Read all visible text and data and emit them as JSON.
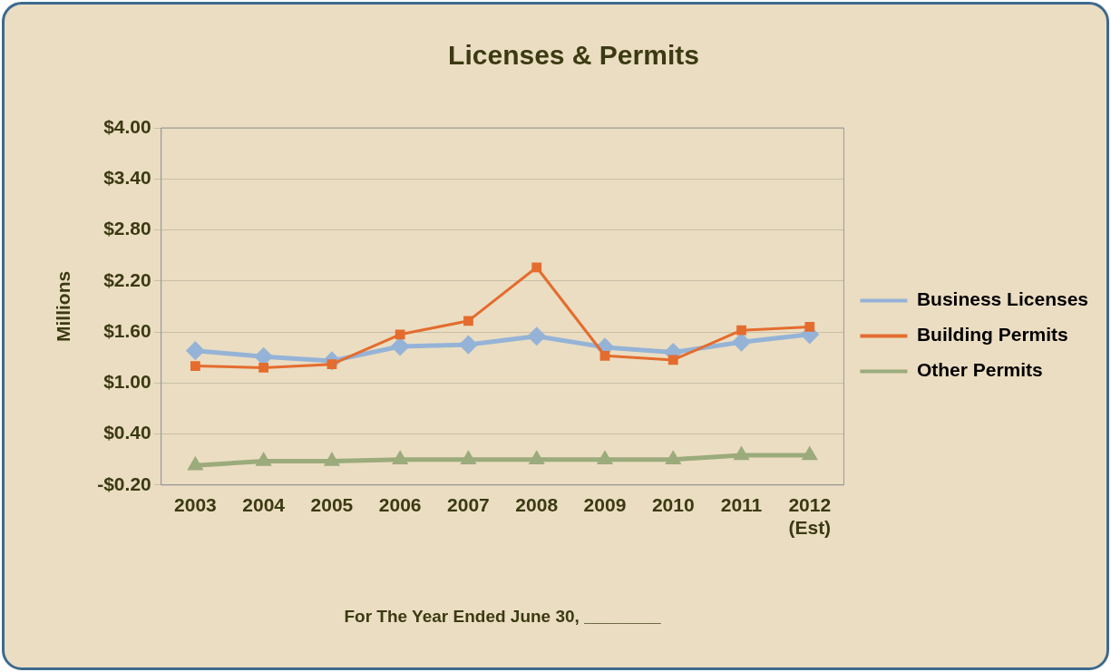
{
  "chart_data": {
    "type": "line",
    "title": "Licenses & Permits",
    "xlabel": "For The Year Ended June 30, ________",
    "ylabel": "Millions",
    "categories": [
      "2003",
      "2004",
      "2005",
      "2006",
      "2007",
      "2008",
      "2009",
      "2010",
      "2011",
      "2012 (Est)"
    ],
    "series": [
      {
        "name": "Business Licenses",
        "color": "#95b3d7",
        "marker": "diamond",
        "values": [
          1.38,
          1.31,
          1.26,
          1.43,
          1.45,
          1.55,
          1.42,
          1.36,
          1.48,
          1.57
        ]
      },
      {
        "name": "Building Permits",
        "color": "#e46c2e",
        "marker": "square",
        "values": [
          1.2,
          1.18,
          1.22,
          1.57,
          1.73,
          2.36,
          1.32,
          1.27,
          1.62,
          1.66
        ]
      },
      {
        "name": "Other Permits",
        "color": "#9bab7c",
        "marker": "triangle",
        "values": [
          0.03,
          0.08,
          0.08,
          0.1,
          0.1,
          0.1,
          0.1,
          0.1,
          0.15,
          0.15
        ]
      }
    ],
    "ylim": [
      -0.2,
      4.0
    ],
    "yticks": [
      {
        "value": -0.2,
        "label": "-$0.20"
      },
      {
        "value": 0.4,
        "label": "$0.40"
      },
      {
        "value": 1.0,
        "label": "$1.00"
      },
      {
        "value": 1.6,
        "label": "$1.60"
      },
      {
        "value": 2.2,
        "label": "$2.20"
      },
      {
        "value": 2.8,
        "label": "$2.80"
      },
      {
        "value": 3.4,
        "label": "$3.40"
      },
      {
        "value": 4.0,
        "label": "$4.00"
      }
    ],
    "grid": "y",
    "legend": "right",
    "line_style": "solid"
  }
}
